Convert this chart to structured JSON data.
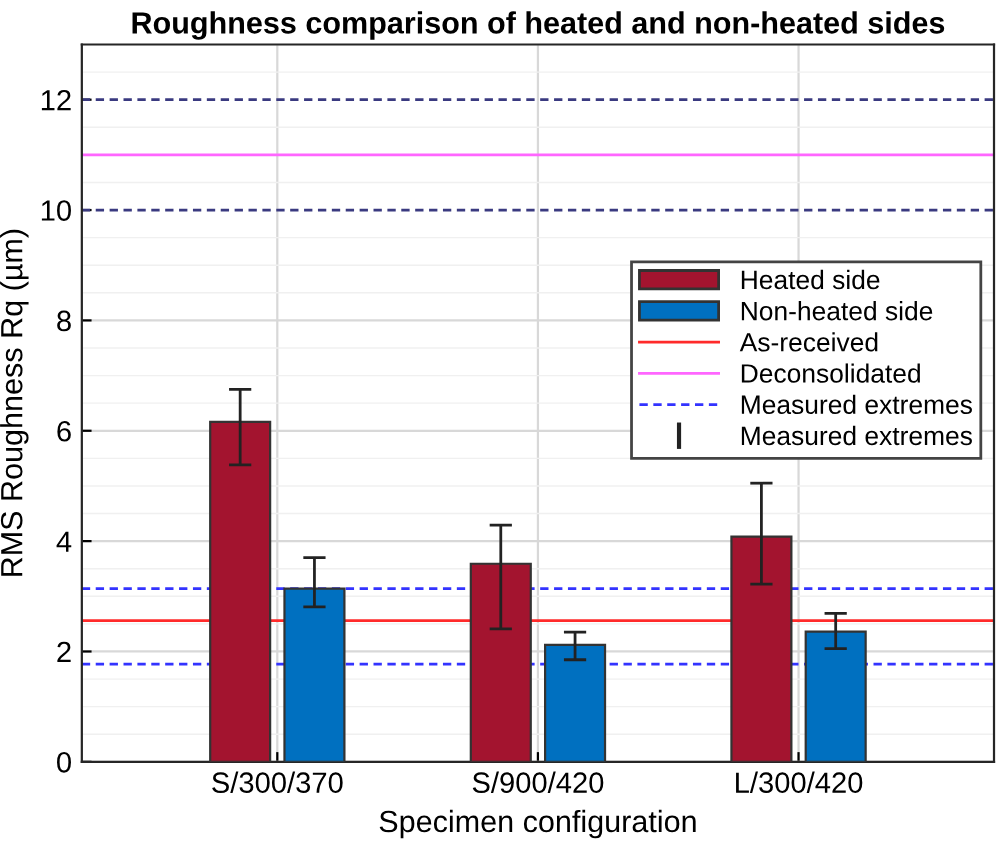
{
  "chart_data": {
    "type": "bar",
    "title": "Roughness comparison of heated and non-heated sides",
    "xlabel": "Specimen configuration",
    "ylabel": "RMS Roughness Rq (µm)",
    "categories": [
      "S/300/370",
      "S/900/420",
      "L/300/420"
    ],
    "series": [
      {
        "name": "Heated side",
        "color": "#a3142f",
        "values": [
          6.16,
          3.59,
          4.08
        ],
        "errors": [
          [
            5.38,
            6.75
          ],
          [
            2.41,
            4.29
          ],
          [
            3.22,
            5.05
          ]
        ]
      },
      {
        "name": "Non-heated side",
        "color": "#0070c0",
        "values": [
          3.14,
          2.12,
          2.36
        ],
        "errors": [
          [
            2.81,
            3.7
          ],
          [
            1.85,
            2.35
          ],
          [
            2.05,
            2.69
          ]
        ]
      }
    ],
    "ref_lines": [
      {
        "axis": "y",
        "value": 2.56,
        "label": "As-received",
        "color": "#ff2a2a",
        "line_style": "solid"
      },
      {
        "axis": "y",
        "value": 11,
        "label": "Deconsolidated",
        "color": "#ff66ff",
        "line_style": "solid"
      },
      {
        "axis": "y",
        "value": 3.14,
        "label": "Measured extremes",
        "color": "#3333ff",
        "line_style": "dashed"
      },
      {
        "axis": "y",
        "value": 1.77,
        "color": "#3333ff",
        "line_style": "dashed"
      },
      {
        "axis": "y",
        "value": 10,
        "color": "#3a3a80",
        "line_style": "dashed"
      },
      {
        "axis": "y",
        "value": 12,
        "color": "#3a3a80",
        "line_style": "dashed"
      }
    ],
    "annotations": [
      "Measured extremes"
    ],
    "ylim": [
      0,
      13
    ],
    "yticks": [
      0,
      2,
      4,
      6,
      8,
      10,
      12
    ],
    "grid": true,
    "legend": "right"
  }
}
